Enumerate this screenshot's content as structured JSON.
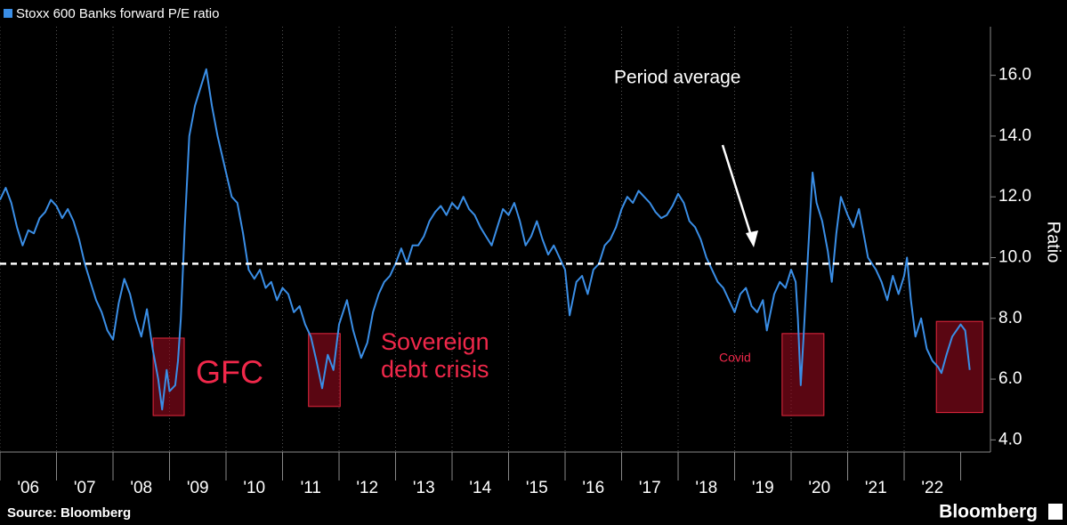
{
  "chart_data": {
    "type": "line",
    "legend": "top-left",
    "grid": true,
    "xlim": [
      2006,
      2023.48
    ],
    "ylim": [
      3.6,
      17.6
    ],
    "yticks": [
      {
        "value": 4,
        "label": "4.0"
      },
      {
        "value": 6,
        "label": "6.0"
      },
      {
        "value": 8,
        "label": "8.0"
      },
      {
        "value": 10,
        "label": "10.0"
      },
      {
        "value": 12,
        "label": "12.0"
      },
      {
        "value": 14,
        "label": "14.0"
      },
      {
        "value": 16,
        "label": "16.0"
      }
    ],
    "xticks": [
      {
        "value": 2006,
        "label": "'06"
      },
      {
        "value": 2007,
        "label": "'07"
      },
      {
        "value": 2008,
        "label": "'08"
      },
      {
        "value": 2009,
        "label": "'09"
      },
      {
        "value": 2010,
        "label": "'10"
      },
      {
        "value": 2011,
        "label": "'11"
      },
      {
        "value": 2012,
        "label": "'12"
      },
      {
        "value": 2013,
        "label": "'13"
      },
      {
        "value": 2014,
        "label": "'14"
      },
      {
        "value": 2015,
        "label": "'15"
      },
      {
        "value": 2016,
        "label": "'16"
      },
      {
        "value": 2017,
        "label": "'17"
      },
      {
        "value": 2018,
        "label": "'18"
      },
      {
        "value": 2019,
        "label": "'19"
      },
      {
        "value": 2020,
        "label": "'20"
      },
      {
        "value": 2021,
        "label": "'21"
      },
      {
        "value": 2022,
        "label": "'22"
      }
    ],
    "y_label": "Ratio",
    "average": 9.8,
    "average_label": "Period average",
    "highlights": [
      {
        "x": [
          2008.71,
          2009.26
        ],
        "y": [
          4.8,
          7.35
        ],
        "label": [
          "GFC"
        ]
      },
      {
        "x": [
          2011.46,
          2012.02
        ],
        "y": [
          5.1,
          7.5
        ],
        "label": [
          "Sovereign",
          "debt crisis"
        ]
      },
      {
        "x": [
          2019.84,
          2020.58
        ],
        "y": [
          4.8,
          7.5
        ],
        "label": [
          "Covid"
        ]
      },
      {
        "x": [
          2022.57,
          2023.39
        ],
        "y": [
          4.9,
          7.9
        ]
      }
    ],
    "x": [
      2006.0,
      2006.1,
      2006.2,
      2006.3,
      2006.4,
      2006.5,
      2006.6,
      2006.7,
      2006.8,
      2006.9,
      2007.0,
      2007.1,
      2007.2,
      2007.3,
      2007.4,
      2007.5,
      2007.6,
      2007.7,
      2007.8,
      2007.9,
      2008.0,
      2008.1,
      2008.2,
      2008.3,
      2008.4,
      2008.5,
      2008.6,
      2008.7,
      2008.8,
      2008.87,
      2008.95,
      2009.0,
      2009.1,
      2009.15,
      2009.2,
      2009.27,
      2009.35,
      2009.45,
      2009.55,
      2009.65,
      2009.75,
      2009.85,
      2010.0,
      2010.1,
      2010.2,
      2010.3,
      2010.4,
      2010.5,
      2010.6,
      2010.7,
      2010.8,
      2010.9,
      2011.0,
      2011.1,
      2011.2,
      2011.3,
      2011.4,
      2011.5,
      2011.6,
      2011.7,
      2011.8,
      2011.9,
      2012.0,
      2012.14,
      2012.25,
      2012.39,
      2012.5,
      2012.6,
      2012.7,
      2012.8,
      2012.9,
      2013.0,
      2013.1,
      2013.2,
      2013.3,
      2013.4,
      2013.5,
      2013.6,
      2013.7,
      2013.8,
      2013.9,
      2014.0,
      2014.1,
      2014.2,
      2014.3,
      2014.4,
      2014.5,
      2014.6,
      2014.7,
      2014.8,
      2014.9,
      2015.0,
      2015.1,
      2015.2,
      2015.3,
      2015.4,
      2015.5,
      2015.6,
      2015.7,
      2015.8,
      2015.9,
      2016.0,
      2016.08,
      2016.2,
      2016.3,
      2016.4,
      2016.5,
      2016.6,
      2016.7,
      2016.8,
      2016.9,
      2017.0,
      2017.1,
      2017.2,
      2017.3,
      2017.4,
      2017.5,
      2017.6,
      2017.7,
      2017.8,
      2017.9,
      2018.0,
      2018.1,
      2018.2,
      2018.3,
      2018.4,
      2018.5,
      2018.6,
      2018.7,
      2018.8,
      2018.9,
      2019.0,
      2019.1,
      2019.2,
      2019.3,
      2019.4,
      2019.5,
      2019.57,
      2019.7,
      2019.8,
      2019.9,
      2020.0,
      2020.08,
      2020.12,
      2020.17,
      2020.22,
      2020.3,
      2020.38,
      2020.45,
      2020.55,
      2020.65,
      2020.72,
      2020.8,
      2020.88,
      2021.0,
      2021.1,
      2021.2,
      2021.3,
      2021.36,
      2021.5,
      2021.6,
      2021.7,
      2021.8,
      2021.9,
      2022.0,
      2022.05,
      2022.12,
      2022.2,
      2022.3,
      2022.4,
      2022.5,
      2022.6,
      2022.66,
      2022.75,
      2022.85,
      2023.0,
      2023.08,
      2023.16
    ],
    "series": [
      {
        "name": "Stoxx 600 Banks forward P/E ratio",
        "color": "#3a8ee6",
        "values": [
          11.9,
          12.3,
          11.8,
          11.0,
          10.4,
          10.9,
          10.8,
          11.3,
          11.5,
          11.9,
          11.7,
          11.3,
          11.6,
          11.2,
          10.6,
          9.8,
          9.2,
          8.6,
          8.2,
          7.6,
          7.3,
          8.5,
          9.3,
          8.8,
          8.0,
          7.4,
          8.3,
          7.0,
          6.0,
          5.0,
          6.3,
          5.6,
          5.8,
          6.6,
          8.0,
          11.0,
          14.0,
          15.0,
          15.6,
          16.2,
          15.0,
          14.0,
          12.8,
          12.0,
          11.8,
          10.8,
          9.6,
          9.3,
          9.6,
          9.0,
          9.2,
          8.6,
          9.0,
          8.8,
          8.2,
          8.4,
          7.8,
          7.4,
          6.6,
          5.7,
          6.8,
          6.3,
          7.8,
          8.6,
          7.6,
          6.7,
          7.2,
          8.2,
          8.8,
          9.2,
          9.4,
          9.8,
          10.3,
          9.8,
          10.4,
          10.4,
          10.7,
          11.2,
          11.5,
          11.7,
          11.4,
          11.8,
          11.6,
          12.0,
          11.6,
          11.4,
          11.0,
          10.7,
          10.4,
          11.0,
          11.6,
          11.4,
          11.8,
          11.2,
          10.4,
          10.7,
          11.2,
          10.6,
          10.1,
          10.4,
          10.0,
          9.6,
          8.1,
          9.2,
          9.4,
          8.8,
          9.6,
          9.8,
          10.4,
          10.6,
          11.0,
          11.6,
          12.0,
          11.8,
          12.2,
          12.0,
          11.8,
          11.5,
          11.3,
          11.4,
          11.7,
          12.1,
          11.8,
          11.2,
          11.0,
          10.6,
          10.0,
          9.6,
          9.2,
          9.0,
          8.6,
          8.2,
          8.8,
          9.0,
          8.4,
          8.2,
          8.6,
          7.6,
          8.8,
          9.2,
          9.0,
          9.6,
          9.2,
          8.0,
          5.8,
          7.4,
          10.2,
          12.8,
          11.8,
          11.2,
          10.2,
          9.2,
          10.8,
          12.0,
          11.4,
          11.0,
          11.6,
          10.6,
          10.0,
          9.6,
          9.2,
          8.6,
          9.4,
          8.8,
          9.4,
          10.0,
          8.6,
          7.4,
          8.0,
          7.0,
          6.6,
          6.4,
          6.2,
          6.8,
          7.4,
          7.8,
          7.6,
          6.3
        ]
      }
    ]
  },
  "footer": {
    "source": "Source: Bloomberg",
    "brand": "Bloomberg"
  }
}
